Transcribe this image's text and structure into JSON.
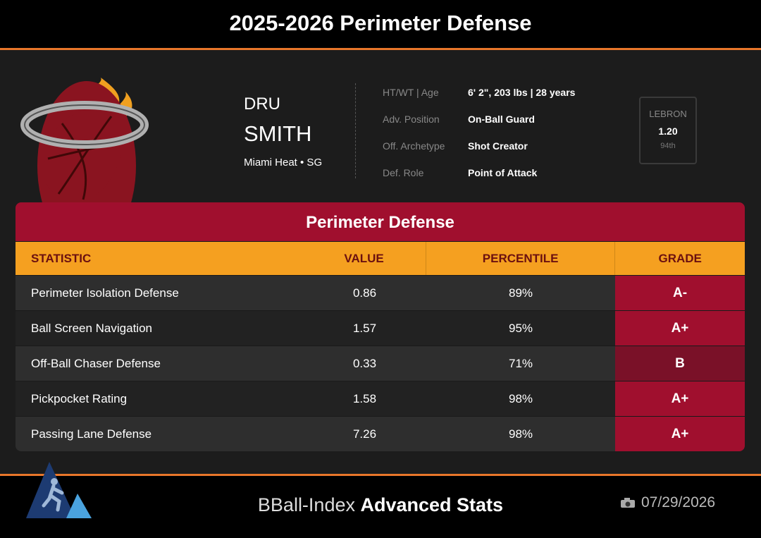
{
  "header": {
    "title": "2025-2026 Perimeter Defense"
  },
  "player": {
    "first_name": "DRU",
    "last_name": "SMITH",
    "team_position": "Miami Heat • SG"
  },
  "bio": [
    {
      "label": "HT/WT | Age",
      "value": "6' 2\", 203 lbs | 28 years"
    },
    {
      "label": "Adv. Position",
      "value": "On-Ball Guard"
    },
    {
      "label": "Off. Archetype",
      "value": "Shot Creator"
    },
    {
      "label": "Def. Role",
      "value": "Point of Attack"
    }
  ],
  "lebron": {
    "label": "LEBRON",
    "value": "1.20",
    "rank": "94th"
  },
  "table": {
    "title": "Perimeter Defense",
    "columns": [
      "STATISTIC",
      "VALUE",
      "PERCENTILE",
      "GRADE"
    ],
    "rows": [
      [
        "Perimeter Isolation Defense",
        "0.86",
        "89%",
        "A-"
      ],
      [
        "Ball Screen Navigation",
        "1.57",
        "95%",
        "A+"
      ],
      [
        "Off-Ball Chaser Defense",
        "0.33",
        "71%",
        "B"
      ],
      [
        "Pickpocket Rating",
        "1.58",
        "98%",
        "A+"
      ],
      [
        "Passing Lane Defense",
        "7.26",
        "98%",
        "A+"
      ]
    ]
  },
  "footer": {
    "brand_light": "BBall-Index",
    "brand_bold": "Advanced Stats",
    "date": "07/29/2026"
  }
}
